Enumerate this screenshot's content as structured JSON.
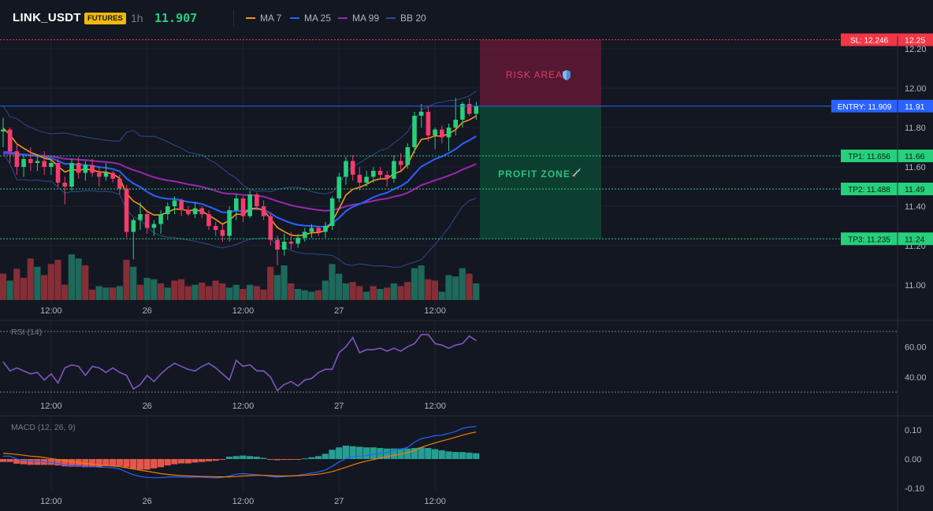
{
  "header": {
    "symbol": "LINK_USDT",
    "badge": "FUTURES",
    "timeframe": "1h",
    "last_price": "11.907"
  },
  "indicators": [
    {
      "name": "MA 7",
      "color": "#f7931a"
    },
    {
      "name": "MA 25",
      "color": "#2962ff"
    },
    {
      "name": "MA 99",
      "color": "#9c27b0"
    },
    {
      "name": "BB 20",
      "color": "#1e3a8a"
    }
  ],
  "trade_levels": {
    "sl": {
      "label": "SL: 12.246",
      "axis": "12.25",
      "value": 12.246,
      "color": "#f23645"
    },
    "entry": {
      "label": "ENTRY: 11.909",
      "axis": "11.91",
      "value": 11.909,
      "color": "#2962ff"
    },
    "tp1": {
      "label": "TP1: 11.656",
      "axis": "11.66",
      "value": 11.656,
      "color": "#089981"
    },
    "tp2": {
      "label": "TP2: 11.488",
      "axis": "11.49",
      "value": 11.488,
      "color": "#089981"
    },
    "tp3": {
      "label": "TP3: 11.235",
      "axis": "11.24",
      "value": 11.235,
      "color": "#089981"
    }
  },
  "zones": {
    "risk_label": "RISK AREA",
    "profit_label": "PROFIT ZONE"
  },
  "chart_data": [
    {
      "type": "candlestick",
      "title": "",
      "y_ticks": [
        "12.20",
        "12.00",
        "11.80",
        "11.60",
        "11.40",
        "11.20",
        "11.00"
      ],
      "x_ticks": [
        "12:00",
        "26",
        "12:00",
        "27",
        "12:00"
      ],
      "ylim": [
        10.94,
        12.25
      ],
      "candles": [
        {
          "o": 11.78,
          "h": 11.85,
          "l": 11.7,
          "c": 11.79
        },
        {
          "o": 11.79,
          "h": 11.8,
          "l": 11.62,
          "c": 11.68
        },
        {
          "o": 11.68,
          "h": 11.72,
          "l": 11.56,
          "c": 11.6
        },
        {
          "o": 11.6,
          "h": 11.66,
          "l": 11.55,
          "c": 11.64
        },
        {
          "o": 11.64,
          "h": 11.7,
          "l": 11.58,
          "c": 11.62
        },
        {
          "o": 11.62,
          "h": 11.66,
          "l": 11.58,
          "c": 11.63
        },
        {
          "o": 11.63,
          "h": 11.68,
          "l": 11.56,
          "c": 11.6
        },
        {
          "o": 11.6,
          "h": 11.64,
          "l": 11.56,
          "c": 11.62
        },
        {
          "o": 11.62,
          "h": 11.64,
          "l": 11.5,
          "c": 11.52
        },
        {
          "o": 11.52,
          "h": 11.55,
          "l": 11.41,
          "c": 11.5
        },
        {
          "o": 11.5,
          "h": 11.64,
          "l": 11.48,
          "c": 11.62
        },
        {
          "o": 11.62,
          "h": 11.65,
          "l": 11.54,
          "c": 11.57
        },
        {
          "o": 11.57,
          "h": 11.63,
          "l": 11.53,
          "c": 11.61
        },
        {
          "o": 11.61,
          "h": 11.64,
          "l": 11.55,
          "c": 11.57
        },
        {
          "o": 11.57,
          "h": 11.6,
          "l": 11.5,
          "c": 11.55
        },
        {
          "o": 11.55,
          "h": 11.62,
          "l": 11.53,
          "c": 11.57
        },
        {
          "o": 11.57,
          "h": 11.58,
          "l": 11.52,
          "c": 11.54
        },
        {
          "o": 11.54,
          "h": 11.56,
          "l": 11.46,
          "c": 11.49
        },
        {
          "o": 11.49,
          "h": 11.51,
          "l": 11.24,
          "c": 11.27
        },
        {
          "o": 11.27,
          "h": 11.34,
          "l": 11.13,
          "c": 11.33
        },
        {
          "o": 11.33,
          "h": 11.42,
          "l": 11.28,
          "c": 11.36
        },
        {
          "o": 11.36,
          "h": 11.38,
          "l": 11.26,
          "c": 11.29
        },
        {
          "o": 11.29,
          "h": 11.33,
          "l": 11.25,
          "c": 11.31
        },
        {
          "o": 11.31,
          "h": 11.38,
          "l": 11.26,
          "c": 11.36
        },
        {
          "o": 11.36,
          "h": 11.42,
          "l": 11.33,
          "c": 11.4
        },
        {
          "o": 11.4,
          "h": 11.45,
          "l": 11.36,
          "c": 11.43
        },
        {
          "o": 11.43,
          "h": 11.44,
          "l": 11.35,
          "c": 11.38
        },
        {
          "o": 11.38,
          "h": 11.4,
          "l": 11.35,
          "c": 11.36
        },
        {
          "o": 11.36,
          "h": 11.42,
          "l": 11.34,
          "c": 11.39
        },
        {
          "o": 11.39,
          "h": 11.4,
          "l": 11.34,
          "c": 11.36
        },
        {
          "o": 11.36,
          "h": 11.38,
          "l": 11.28,
          "c": 11.3
        },
        {
          "o": 11.3,
          "h": 11.32,
          "l": 11.25,
          "c": 11.28
        },
        {
          "o": 11.28,
          "h": 11.31,
          "l": 11.22,
          "c": 11.25
        },
        {
          "o": 11.25,
          "h": 11.4,
          "l": 11.22,
          "c": 11.38
        },
        {
          "o": 11.38,
          "h": 11.46,
          "l": 11.33,
          "c": 11.44
        },
        {
          "o": 11.44,
          "h": 11.45,
          "l": 11.32,
          "c": 11.35
        },
        {
          "o": 11.35,
          "h": 11.48,
          "l": 11.34,
          "c": 11.46
        },
        {
          "o": 11.46,
          "h": 11.47,
          "l": 11.38,
          "c": 11.4
        },
        {
          "o": 11.4,
          "h": 11.43,
          "l": 11.33,
          "c": 11.35
        },
        {
          "o": 11.35,
          "h": 11.37,
          "l": 11.2,
          "c": 11.23
        },
        {
          "o": 11.23,
          "h": 11.25,
          "l": 11.1,
          "c": 11.18
        },
        {
          "o": 11.18,
          "h": 11.26,
          "l": 11.15,
          "c": 11.22
        },
        {
          "o": 11.22,
          "h": 11.27,
          "l": 11.18,
          "c": 11.21
        },
        {
          "o": 11.21,
          "h": 11.26,
          "l": 11.19,
          "c": 11.24
        },
        {
          "o": 11.24,
          "h": 11.29,
          "l": 11.22,
          "c": 11.27
        },
        {
          "o": 11.27,
          "h": 11.31,
          "l": 11.24,
          "c": 11.29
        },
        {
          "o": 11.29,
          "h": 11.3,
          "l": 11.25,
          "c": 11.27
        },
        {
          "o": 11.27,
          "h": 11.32,
          "l": 11.24,
          "c": 11.3
        },
        {
          "o": 11.3,
          "h": 11.45,
          "l": 11.28,
          "c": 11.44
        },
        {
          "o": 11.44,
          "h": 11.57,
          "l": 11.42,
          "c": 11.55
        },
        {
          "o": 11.55,
          "h": 11.65,
          "l": 11.51,
          "c": 11.63
        },
        {
          "o": 11.63,
          "h": 11.66,
          "l": 11.53,
          "c": 11.56
        },
        {
          "o": 11.56,
          "h": 11.6,
          "l": 11.48,
          "c": 11.52
        },
        {
          "o": 11.52,
          "h": 11.58,
          "l": 11.5,
          "c": 11.55
        },
        {
          "o": 11.55,
          "h": 11.6,
          "l": 11.52,
          "c": 11.58
        },
        {
          "o": 11.58,
          "h": 11.6,
          "l": 11.54,
          "c": 11.56
        },
        {
          "o": 11.56,
          "h": 11.58,
          "l": 11.5,
          "c": 11.54
        },
        {
          "o": 11.54,
          "h": 11.66,
          "l": 11.52,
          "c": 11.63
        },
        {
          "o": 11.63,
          "h": 11.67,
          "l": 11.58,
          "c": 11.61
        },
        {
          "o": 11.61,
          "h": 11.72,
          "l": 11.59,
          "c": 11.7
        },
        {
          "o": 11.7,
          "h": 11.88,
          "l": 11.67,
          "c": 11.86
        },
        {
          "o": 11.86,
          "h": 11.92,
          "l": 11.8,
          "c": 11.88
        },
        {
          "o": 11.88,
          "h": 11.91,
          "l": 11.73,
          "c": 11.76
        },
        {
          "o": 11.76,
          "h": 11.8,
          "l": 11.69,
          "c": 11.79
        },
        {
          "o": 11.79,
          "h": 11.81,
          "l": 11.72,
          "c": 11.75
        },
        {
          "o": 11.75,
          "h": 11.82,
          "l": 11.68,
          "c": 11.8
        },
        {
          "o": 11.8,
          "h": 11.95,
          "l": 11.76,
          "c": 11.84
        },
        {
          "o": 11.84,
          "h": 11.93,
          "l": 11.8,
          "c": 11.92
        },
        {
          "o": 11.92,
          "h": 11.95,
          "l": 11.86,
          "c": 11.87
        },
        {
          "o": 11.87,
          "h": 11.93,
          "l": 11.84,
          "c": 11.91
        }
      ],
      "volume": [
        {
          "v": 38,
          "up": false
        },
        {
          "v": 28,
          "up": true
        },
        {
          "v": 45,
          "up": false
        },
        {
          "v": 32,
          "up": false
        },
        {
          "v": 60,
          "up": false
        },
        {
          "v": 48,
          "up": true
        },
        {
          "v": 36,
          "up": false
        },
        {
          "v": 52,
          "up": false
        },
        {
          "v": 58,
          "up": false
        },
        {
          "v": 22,
          "up": false
        },
        {
          "v": 66,
          "up": true
        },
        {
          "v": 60,
          "up": true
        },
        {
          "v": 50,
          "up": false
        },
        {
          "v": 15,
          "up": false
        },
        {
          "v": 20,
          "up": true
        },
        {
          "v": 18,
          "up": true
        },
        {
          "v": 18,
          "up": false
        },
        {
          "v": 20,
          "up": true
        },
        {
          "v": 58,
          "up": false
        },
        {
          "v": 48,
          "up": true
        },
        {
          "v": 22,
          "up": false
        },
        {
          "v": 32,
          "up": true
        },
        {
          "v": 30,
          "up": true
        },
        {
          "v": 24,
          "up": false
        },
        {
          "v": 18,
          "up": true
        },
        {
          "v": 28,
          "up": false
        },
        {
          "v": 30,
          "up": false
        },
        {
          "v": 20,
          "up": false
        },
        {
          "v": 22,
          "up": true
        },
        {
          "v": 25,
          "up": false
        },
        {
          "v": 20,
          "up": false
        },
        {
          "v": 28,
          "up": false
        },
        {
          "v": 24,
          "up": false
        },
        {
          "v": 18,
          "up": true
        },
        {
          "v": 22,
          "up": true
        },
        {
          "v": 16,
          "up": false
        },
        {
          "v": 22,
          "up": true
        },
        {
          "v": 20,
          "up": false
        },
        {
          "v": 15,
          "up": false
        },
        {
          "v": 48,
          "up": false
        },
        {
          "v": 36,
          "up": true
        },
        {
          "v": 50,
          "up": true
        },
        {
          "v": 24,
          "up": false
        },
        {
          "v": 16,
          "up": true
        },
        {
          "v": 14,
          "up": true
        },
        {
          "v": 12,
          "up": true
        },
        {
          "v": 14,
          "up": false
        },
        {
          "v": 28,
          "up": true
        },
        {
          "v": 52,
          "up": true
        },
        {
          "v": 38,
          "up": true
        },
        {
          "v": 24,
          "up": true
        },
        {
          "v": 26,
          "up": false
        },
        {
          "v": 20,
          "up": false
        },
        {
          "v": 12,
          "up": true
        },
        {
          "v": 20,
          "up": false
        },
        {
          "v": 16,
          "up": true
        },
        {
          "v": 18,
          "up": false
        },
        {
          "v": 24,
          "up": true
        },
        {
          "v": 20,
          "up": false
        },
        {
          "v": 26,
          "up": false
        },
        {
          "v": 46,
          "up": true
        },
        {
          "v": 50,
          "up": true
        },
        {
          "v": 30,
          "up": false
        },
        {
          "v": 28,
          "up": false
        },
        {
          "v": 12,
          "up": true
        },
        {
          "v": 36,
          "up": true
        },
        {
          "v": 34,
          "up": true
        },
        {
          "v": 46,
          "up": true
        },
        {
          "v": 38,
          "up": false
        },
        {
          "v": 24,
          "up": true
        }
      ]
    },
    {
      "type": "line",
      "title": "RSI (14)",
      "y_ticks": [
        "60.00",
        "40.00"
      ],
      "ylim": [
        25,
        77
      ],
      "bands": [
        70,
        30
      ],
      "x_ticks": [
        "12:00",
        "26",
        "12:00",
        "27",
        "12:00"
      ],
      "series": [
        {
          "color": "#7e57c2",
          "values": [
            50,
            44,
            46,
            44,
            42,
            43,
            38,
            42,
            36,
            46,
            48,
            47,
            41,
            47,
            46,
            43,
            46,
            43,
            41,
            32,
            35,
            41,
            37,
            42,
            46,
            49,
            47,
            45,
            44,
            47,
            49,
            46,
            42,
            38,
            51,
            47,
            48,
            44,
            44,
            40,
            31,
            35,
            37,
            34,
            38,
            39,
            43,
            45,
            45,
            56,
            60,
            66,
            56,
            58,
            58,
            59,
            57,
            59,
            57,
            60,
            62,
            68,
            68,
            62,
            61,
            59,
            61,
            62,
            67,
            64
          ]
        }
      ]
    },
    {
      "type": "line",
      "title": "MACD (12, 26, 9)",
      "y_ticks": [
        "0.10",
        "0.00",
        "-0.10"
      ],
      "ylim": [
        -0.12,
        0.125
      ],
      "x_ticks": [
        "12:00",
        "26",
        "12:00",
        "27",
        "12:00"
      ],
      "series": [
        {
          "name": "",
          "color": "#2962ff",
          "values": [
            0.01,
            0.01,
            0.0,
            -0.005,
            -0.007,
            -0.008,
            -0.01,
            -0.012,
            -0.016,
            -0.02,
            -0.022,
            -0.022,
            -0.025,
            -0.026,
            -0.028,
            -0.028,
            -0.03,
            -0.034,
            -0.045,
            -0.054,
            -0.06,
            -0.063,
            -0.064,
            -0.064,
            -0.062,
            -0.061,
            -0.062,
            -0.063,
            -0.062,
            -0.062,
            -0.064,
            -0.065,
            -0.063,
            -0.058,
            -0.052,
            -0.05,
            -0.052,
            -0.054,
            -0.056,
            -0.06,
            -0.062,
            -0.06,
            -0.058,
            -0.056,
            -0.052,
            -0.048,
            -0.044,
            -0.038,
            -0.025,
            -0.01,
            0.002,
            0.008,
            0.01,
            0.012,
            0.016,
            0.02,
            0.022,
            0.03,
            0.034,
            0.04,
            0.058,
            0.07,
            0.075,
            0.08,
            0.082,
            0.088,
            0.095,
            0.105,
            0.11,
            0.112
          ]
        },
        {
          "name": "",
          "color": "#f57c00",
          "values": [
            0.02,
            0.018,
            0.016,
            0.013,
            0.01,
            0.008,
            0.005,
            0.002,
            -0.002,
            -0.005,
            -0.009,
            -0.012,
            -0.015,
            -0.018,
            -0.02,
            -0.022,
            -0.024,
            -0.026,
            -0.03,
            -0.034,
            -0.038,
            -0.042,
            -0.046,
            -0.05,
            -0.053,
            -0.055,
            -0.057,
            -0.058,
            -0.059,
            -0.06,
            -0.06,
            -0.061,
            -0.061,
            -0.061,
            -0.06,
            -0.058,
            -0.057,
            -0.056,
            -0.056,
            -0.057,
            -0.058,
            -0.058,
            -0.058,
            -0.057,
            -0.056,
            -0.054,
            -0.052,
            -0.048,
            -0.043,
            -0.036,
            -0.028,
            -0.02,
            -0.013,
            -0.007,
            -0.002,
            0.003,
            0.008,
            0.013,
            0.017,
            0.022,
            0.03,
            0.04,
            0.048,
            0.055,
            0.062,
            0.068,
            0.075,
            0.082,
            0.088,
            0.093
          ]
        }
      ],
      "histogram": [
        -0.01,
        -0.01,
        -0.016,
        -0.018,
        -0.02,
        -0.02,
        -0.02,
        -0.02,
        -0.022,
        -0.025,
        -0.026,
        -0.026,
        -0.028,
        -0.028,
        -0.028,
        -0.024,
        -0.024,
        -0.024,
        -0.028,
        -0.033,
        -0.036,
        -0.036,
        -0.032,
        -0.028,
        -0.022,
        -0.018,
        -0.015,
        -0.015,
        -0.012,
        -0.01,
        -0.008,
        -0.006,
        -0.002,
        0.008,
        0.01,
        0.012,
        0.01,
        0.008,
        0.004,
        -0.002,
        -0.004,
        -0.002,
        -0.002,
        -0.001,
        0.002,
        0.006,
        0.01,
        0.018,
        0.032,
        0.04,
        0.046,
        0.044,
        0.042,
        0.04,
        0.04,
        0.038,
        0.036,
        0.036,
        0.036,
        0.036,
        0.038,
        0.04,
        0.038,
        0.034,
        0.03,
        0.026,
        0.024,
        0.024,
        0.022,
        0.02
      ]
    }
  ]
}
